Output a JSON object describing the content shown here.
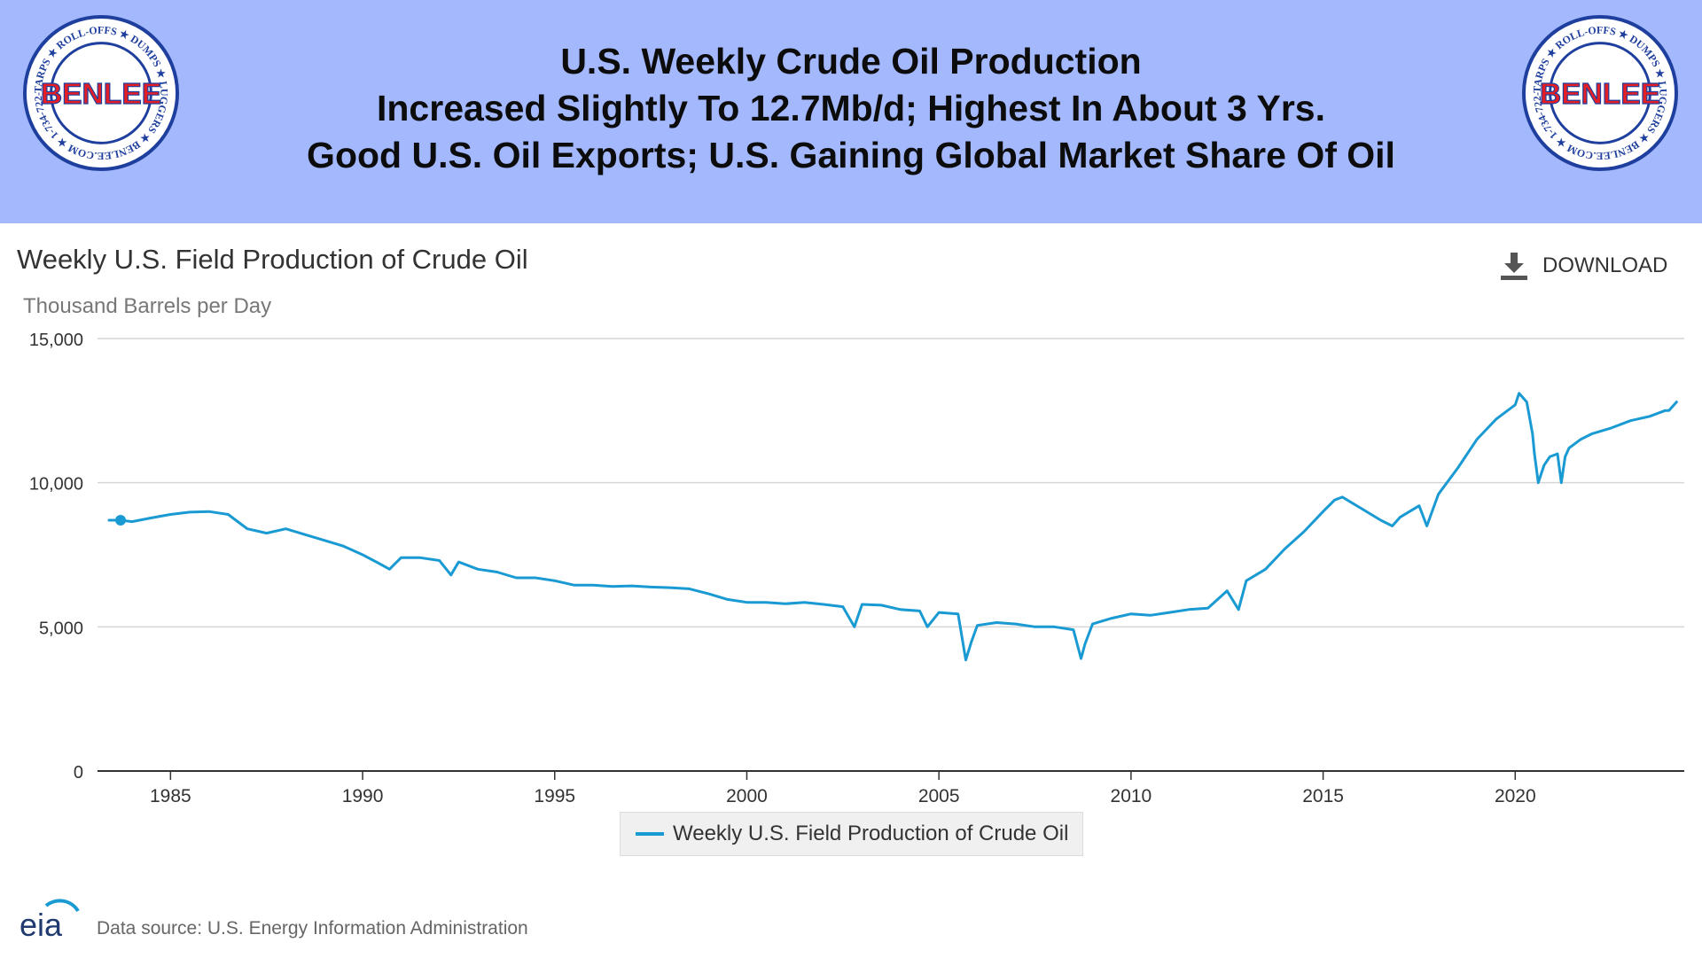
{
  "banner": {
    "headline_lines": [
      "U.S. Weekly Crude Oil Production",
      "Increased Slightly To 12.7Mb/d; Highest In About 3 Yrs.",
      "Good U.S. Oil Exports; U.S. Gaining Global Market Share Of Oil"
    ],
    "background_color": "#a4b8fd",
    "logo": {
      "name": "BENLEE",
      "ring_text": "TARPS ★ ROLL-OFFS ★ DUMPS ★ LUGGERS ★ BENLEE.COM ★ 1-734-722-8100 ★ PARTS ★",
      "colors": {
        "ring": "#1f3f9e",
        "text": "#e21f26"
      }
    }
  },
  "toolbar": {
    "download_label": "DOWNLOAD",
    "download_icon": "download-icon"
  },
  "chart_data": {
    "type": "line",
    "title": "Weekly U.S. Field Production of Crude Oil",
    "ylabel": "Thousand Barrels per Day",
    "xlabel": "",
    "xlim": [
      1983.1,
      2024.4
    ],
    "ylim": [
      0,
      15000
    ],
    "x_ticks": [
      1985,
      1990,
      1995,
      2000,
      2005,
      2010,
      2015,
      2020
    ],
    "y_ticks": [
      0,
      5000,
      10000,
      15000
    ],
    "y_tick_labels": [
      "0",
      "5,000",
      "10,000",
      "15,000"
    ],
    "grid": true,
    "legend": "bottom-center",
    "series": [
      {
        "name": "Weekly U.S. Field Production of Crude Oil",
        "color": "#1a9ad3",
        "x": [
          1983.4,
          1983.7,
          1984.0,
          1984.5,
          1985.0,
          1985.5,
          1986.0,
          1986.5,
          1986.9,
          1987.0,
          1987.5,
          1988.0,
          1988.5,
          1989.0,
          1989.5,
          1990.0,
          1990.5,
          1990.7,
          1991.0,
          1991.5,
          1992.0,
          1992.3,
          1992.5,
          1993.0,
          1993.5,
          1994.0,
          1994.5,
          1995.0,
          1995.5,
          1996.0,
          1996.5,
          1997.0,
          1997.5,
          1998.0,
          1998.5,
          1999.0,
          1999.5,
          2000.0,
          2000.5,
          2001.0,
          2001.5,
          2002.0,
          2002.5,
          2002.8,
          2003.0,
          2003.5,
          2004.0,
          2004.5,
          2004.7,
          2005.0,
          2005.5,
          2005.7,
          2005.85,
          2006.0,
          2006.5,
          2007.0,
          2007.5,
          2008.0,
          2008.5,
          2008.7,
          2008.8,
          2009.0,
          2009.5,
          2010.0,
          2010.5,
          2011.0,
          2011.5,
          2012.0,
          2012.5,
          2012.8,
          2013.0,
          2013.5,
          2014.0,
          2014.5,
          2015.0,
          2015.3,
          2015.5,
          2016.0,
          2016.5,
          2016.8,
          2017.0,
          2017.5,
          2017.7,
          2018.0,
          2018.5,
          2019.0,
          2019.5,
          2019.8,
          2020.0,
          2020.1,
          2020.3,
          2020.45,
          2020.5,
          2020.6,
          2020.75,
          2020.9,
          2021.1,
          2021.2,
          2021.3,
          2021.4,
          2021.7,
          2022.0,
          2022.5,
          2023.0,
          2023.5,
          2023.9,
          2024.0,
          2024.2
        ],
        "values": [
          8700,
          8700,
          8650,
          8780,
          8900,
          8980,
          9000,
          8900,
          8500,
          8400,
          8250,
          8400,
          8200,
          8000,
          7800,
          7500,
          7150,
          7000,
          7400,
          7400,
          7300,
          6800,
          7250,
          7000,
          6900,
          6700,
          6700,
          6600,
          6450,
          6450,
          6400,
          6420,
          6380,
          6360,
          6320,
          6150,
          5950,
          5850,
          5850,
          5800,
          5850,
          5780,
          5700,
          5000,
          5780,
          5750,
          5600,
          5550,
          5000,
          5500,
          5450,
          3850,
          4500,
          5050,
          5150,
          5100,
          5000,
          5000,
          4900,
          3900,
          4400,
          5100,
          5300,
          5450,
          5400,
          5500,
          5600,
          5650,
          6250,
          5600,
          6600,
          7000,
          7700,
          8300,
          9000,
          9400,
          9500,
          9100,
          8700,
          8500,
          8800,
          9200,
          8500,
          9600,
          10500,
          11500,
          12200,
          12500,
          12700,
          13100,
          12800,
          11700,
          11000,
          10000,
          10600,
          10900,
          11000,
          10000,
          10900,
          11200,
          11500,
          11700,
          11900,
          12150,
          12300,
          12500,
          12500,
          12800
        ]
      }
    ],
    "markers": [
      {
        "x": 1983.7,
        "y": 8700
      }
    ]
  },
  "footer": {
    "logo_text": "eia",
    "source": "Data source: U.S. Energy Information Administration"
  }
}
